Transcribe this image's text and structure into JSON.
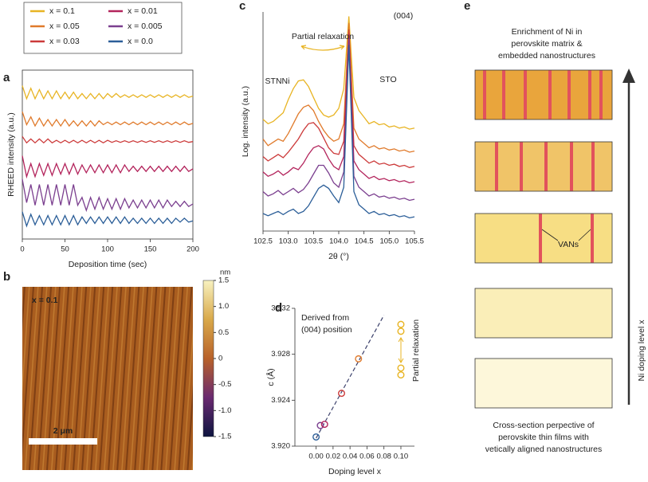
{
  "panel_labels": [
    "a",
    "b",
    "c",
    "d",
    "e"
  ],
  "chart_data": [
    {
      "type": "line",
      "x_label": "Deposition time (sec)",
      "y_label": "RHEED intensity (a.u.)",
      "frame": true,
      "xlim": [
        0,
        200
      ],
      "xticks": [
        0,
        50,
        100,
        150,
        200
      ],
      "ylim": [
        0,
        6.5
      ],
      "x": [
        0,
        5,
        10,
        15,
        20,
        25,
        30,
        35,
        40,
        45,
        50,
        55,
        60,
        65,
        70,
        75,
        80,
        85,
        90,
        95,
        100,
        105,
        110,
        115,
        120,
        125,
        130,
        135,
        140,
        145,
        150,
        155,
        160,
        165,
        170,
        175,
        180,
        185,
        190,
        195,
        200
      ],
      "series": [
        {
          "name": "x = 0.1",
          "color": "#e8b423",
          "values": [
            5.9,
            5.4,
            5.8,
            5.4,
            5.75,
            5.4,
            5.7,
            5.4,
            5.7,
            5.4,
            5.65,
            5.4,
            5.65,
            5.4,
            5.6,
            5.4,
            5.6,
            5.4,
            5.6,
            5.4,
            5.6,
            5.45,
            5.6,
            5.45,
            5.55,
            5.45,
            5.55,
            5.45,
            5.55,
            5.45,
            5.55,
            5.45,
            5.55,
            5.45,
            5.55,
            5.45,
            5.55,
            5.45,
            5.55,
            5.45,
            5.5
          ]
        },
        {
          "name": "x = 0.05",
          "color": "#e07a2b",
          "values": [
            4.9,
            4.4,
            4.7,
            4.35,
            4.65,
            4.35,
            4.6,
            4.35,
            4.6,
            4.35,
            4.6,
            4.35,
            4.55,
            4.35,
            4.55,
            4.35,
            4.55,
            4.35,
            4.55,
            4.4,
            4.5,
            4.4,
            4.5,
            4.4,
            4.5,
            4.4,
            4.5,
            4.4,
            4.5,
            4.4,
            4.5,
            4.4,
            4.5,
            4.4,
            4.5,
            4.4,
            4.5,
            4.4,
            4.5,
            4.4,
            4.45
          ]
        },
        {
          "name": "x = 0.03",
          "color": "#cc3a3a",
          "values": [
            3.95,
            3.7,
            3.85,
            3.7,
            3.85,
            3.7,
            3.85,
            3.7,
            3.8,
            3.7,
            3.8,
            3.7,
            3.8,
            3.7,
            3.8,
            3.7,
            3.8,
            3.7,
            3.8,
            3.7,
            3.8,
            3.72,
            3.78,
            3.72,
            3.78,
            3.72,
            3.78,
            3.72,
            3.78,
            3.72,
            3.78,
            3.72,
            3.78,
            3.72,
            3.78,
            3.72,
            3.78,
            3.72,
            3.78,
            3.72,
            3.75
          ]
        },
        {
          "name": "x = 0.01",
          "color": "#b3245c",
          "values": [
            3.2,
            2.4,
            2.9,
            2.4,
            2.9,
            2.45,
            2.9,
            2.45,
            2.9,
            2.5,
            2.9,
            2.5,
            2.9,
            2.5,
            2.85,
            2.55,
            2.85,
            2.55,
            2.85,
            2.55,
            2.85,
            2.55,
            2.85,
            2.55,
            2.85,
            2.6,
            2.8,
            2.6,
            2.8,
            2.6,
            2.8,
            2.6,
            2.8,
            2.6,
            2.8,
            2.6,
            2.8,
            2.6,
            2.8,
            2.6,
            2.7
          ]
        },
        {
          "name": "x = 0.005",
          "color": "#7b3f8f",
          "values": [
            2.3,
            1.4,
            2.1,
            1.3,
            2.1,
            1.3,
            2.1,
            1.3,
            2.1,
            1.3,
            2.1,
            1.3,
            2.1,
            1.3,
            1.6,
            1.1,
            1.6,
            1.15,
            1.6,
            1.15,
            1.55,
            1.15,
            1.55,
            1.15,
            1.55,
            1.2,
            1.5,
            1.2,
            1.5,
            1.2,
            1.5,
            1.2,
            1.5,
            1.2,
            1.5,
            1.25,
            1.45,
            1.25,
            1.45,
            1.25,
            1.35
          ]
        },
        {
          "name": "x = 0.0",
          "color": "#2b5e98",
          "values": [
            1.05,
            0.5,
            0.95,
            0.55,
            0.9,
            0.55,
            0.9,
            0.55,
            0.9,
            0.55,
            0.9,
            0.55,
            0.9,
            0.55,
            0.85,
            0.6,
            0.85,
            0.6,
            0.85,
            0.6,
            0.85,
            0.6,
            0.85,
            0.6,
            0.85,
            0.6,
            0.8,
            0.6,
            0.8,
            0.6,
            0.8,
            0.6,
            0.8,
            0.6,
            0.8,
            0.6,
            0.8,
            0.65,
            0.8,
            0.65,
            0.7
          ]
        }
      ]
    },
    {
      "type": "image",
      "annotation": "x = 0.1",
      "scale_bar": "2 μm",
      "colorbar": {
        "title": "nm",
        "lim": [
          -1.5,
          1.5
        ],
        "ticks": [
          1.5,
          {
            "value": 1,
            "label": "1.0"
          },
          0.5,
          0,
          -0.5,
          {
            "value": -1,
            "label": "-1.0"
          },
          -1.5
        ]
      }
    },
    {
      "type": "line",
      "x_label": "2θ (°)",
      "y_label": "Log. intensity (a.u.)",
      "frame": false,
      "annotations": [
        "(004)",
        "Partial relaxation",
        "STNNi",
        "STO"
      ],
      "xlim": [
        102.5,
        105.5
      ],
      "xticks": [
        102.5,
        {
          "value": 103,
          "label": "103.0"
        },
        103.5,
        {
          "value": 104,
          "label": "104.0"
        },
        104.5,
        {
          "value": 105,
          "label": "105.0"
        },
        105.5
      ],
      "ylim": [
        0,
        10
      ],
      "x": [
        102.5,
        102.6,
        102.7,
        102.8,
        102.9,
        103.0,
        103.1,
        103.2,
        103.3,
        103.4,
        103.5,
        103.6,
        103.7,
        103.8,
        103.9,
        104.0,
        104.1,
        104.2,
        104.3,
        104.4,
        104.5,
        104.6,
        104.7,
        104.8,
        104.9,
        105.0,
        105.1,
        105.2,
        105.3,
        105.4,
        105.5
      ],
      "series": [
        {
          "color": "#e8b423",
          "values": [
            5.1,
            4.9,
            5.0,
            5.2,
            5.4,
            6.0,
            6.5,
            6.85,
            6.9,
            6.6,
            6.1,
            5.6,
            5.3,
            5.2,
            5.3,
            5.6,
            6.5,
            9.8,
            6.1,
            5.5,
            5.2,
            4.9,
            5.0,
            4.85,
            4.9,
            4.75,
            4.8,
            4.7,
            4.75,
            4.65,
            4.7
          ]
        },
        {
          "color": "#e07a2b",
          "values": [
            4.2,
            3.9,
            4.05,
            4.2,
            4.1,
            4.45,
            4.9,
            5.35,
            5.65,
            5.75,
            5.5,
            5.0,
            4.6,
            4.3,
            4.1,
            4.2,
            4.9,
            9.5,
            4.7,
            4.2,
            4.0,
            3.8,
            3.9,
            3.75,
            3.8,
            3.7,
            3.75,
            3.65,
            3.7,
            3.6,
            3.65
          ]
        },
        {
          "color": "#cc3a3a",
          "values": [
            3.4,
            3.2,
            3.35,
            3.5,
            3.35,
            3.6,
            3.9,
            4.2,
            4.6,
            4.9,
            4.95,
            4.7,
            4.25,
            3.8,
            3.55,
            3.5,
            4.1,
            9.2,
            3.9,
            3.5,
            3.3,
            3.1,
            3.2,
            3.05,
            3.1,
            3.0,
            3.05,
            2.95,
            3.0,
            2.9,
            2.95
          ]
        },
        {
          "color": "#b3245c",
          "values": [
            2.7,
            2.5,
            2.6,
            2.75,
            2.55,
            2.7,
            2.9,
            2.8,
            3.1,
            3.5,
            3.8,
            3.9,
            3.75,
            3.3,
            2.95,
            2.8,
            3.4,
            9.0,
            3.2,
            2.8,
            2.6,
            2.4,
            2.5,
            2.35,
            2.4,
            2.3,
            2.35,
            2.25,
            2.3,
            2.2,
            2.25
          ]
        },
        {
          "color": "#7b3f8f",
          "values": [
            1.8,
            1.6,
            1.7,
            1.85,
            1.65,
            1.8,
            1.95,
            1.75,
            1.9,
            2.2,
            2.6,
            3.0,
            3.0,
            2.65,
            2.2,
            2.0,
            2.7,
            8.8,
            2.5,
            2.0,
            1.8,
            1.6,
            1.7,
            1.55,
            1.6,
            1.5,
            1.55,
            1.45,
            1.5,
            1.4,
            1.45
          ]
        },
        {
          "color": "#2b5e98",
          "values": [
            0.8,
            0.7,
            0.8,
            0.9,
            0.75,
            0.9,
            1.0,
            0.8,
            0.9,
            1.15,
            1.55,
            1.95,
            2.1,
            1.95,
            1.6,
            1.3,
            2.0,
            8.5,
            1.8,
            1.2,
            1.0,
            0.8,
            0.9,
            0.75,
            0.8,
            0.7,
            0.75,
            0.65,
            0.7,
            0.6,
            0.65
          ]
        }
      ]
    },
    {
      "type": "scatter",
      "x_label": "Doping level x",
      "y_label": "c (Å)",
      "annotation": [
        "Derived from",
        "(004) position"
      ],
      "side_label": "Partial relaxation",
      "xlim": [
        -0.025,
        0.116
      ],
      "xticks": [
        {
          "value": 0,
          "label": "0.00"
        },
        {
          "value": 0.02,
          "label": "0.02"
        },
        {
          "value": 0.04,
          "label": "0.04"
        },
        {
          "value": 0.06,
          "label": "0.06"
        },
        {
          "value": 0.08,
          "label": "0.08"
        },
        {
          "value": 0.1,
          "label": "0.10"
        }
      ],
      "ylim": [
        3.92,
        3.932
      ],
      "yticks": [
        {
          "value": 3.92,
          "label": "3.920"
        },
        {
          "value": 3.924,
          "label": "3.924"
        },
        {
          "value": 3.928,
          "label": "3.928"
        },
        {
          "value": 3.932,
          "label": "3.932"
        }
      ],
      "x": [
        0,
        0.005,
        0.01,
        0.03,
        0.05,
        0.1,
        0.1,
        0.1,
        0.1
      ],
      "y": [
        3.9208,
        3.9218,
        3.9219,
        3.9246,
        3.9276,
        3.9306,
        3.93,
        3.9268,
        3.9262
      ],
      "colors": [
        "#2b5e98",
        "#7b3f8f",
        "#b3245c",
        "#cc3a3a",
        "#e07a2b",
        "#e8b423",
        "#e8b423",
        "#e8b423",
        "#e8b423"
      ],
      "fit_line": {
        "x": [
          0,
          0.08
        ],
        "y": [
          3.9207,
          3.9314
        ]
      }
    }
  ],
  "diagram": {
    "top_text": [
      "Enrichment of Ni in",
      "perovskite matrix &",
      "embedded nanostructures"
    ],
    "vans_label": "VANs",
    "axis_label": "Ni doping level x",
    "bottom_text": [
      "Cross-section perpective of",
      "perovskite thin films with",
      "vetically aligned nanostructures"
    ]
  }
}
